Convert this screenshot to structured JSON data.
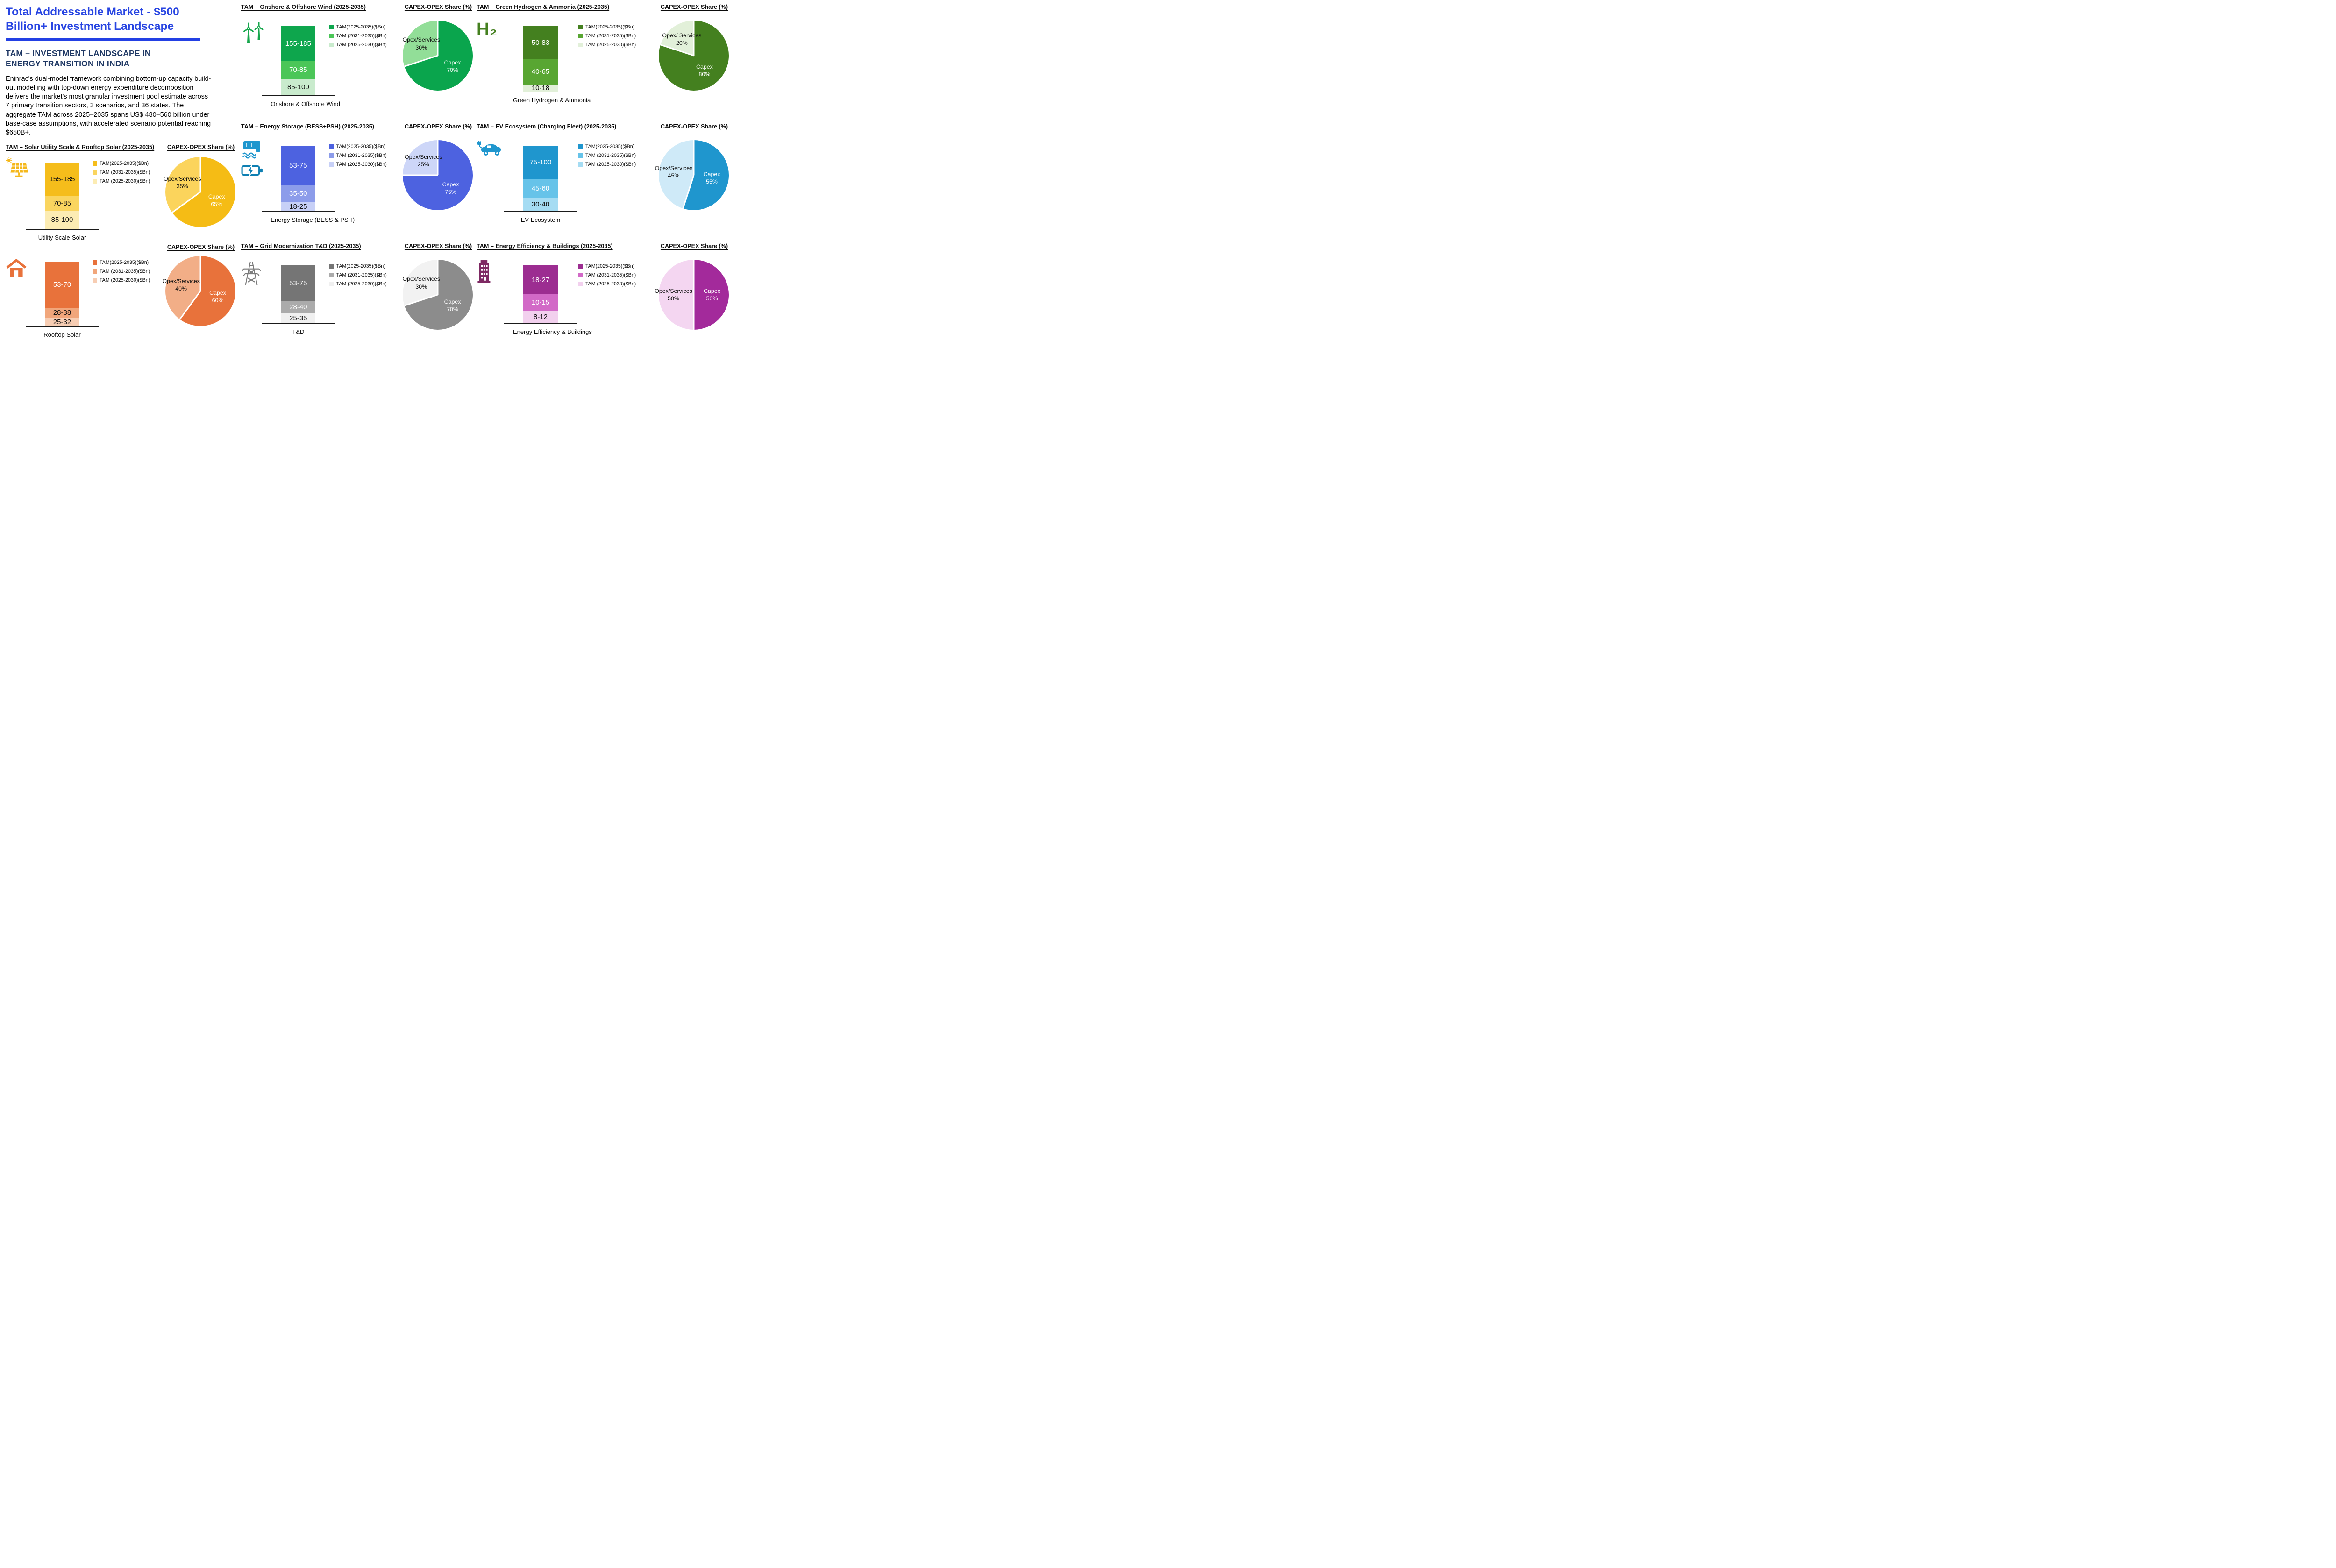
{
  "page": {
    "title": "Total Addressable Market - $500 Billion+ Investment Landscape",
    "subtitle": "TAM – INVESTMENT LANDSCAPE IN ENERGY TRANSITION IN INDIA",
    "description": "Eninrac's dual-model framework combining bottom-up capacity build-out modelling with top-down energy expenditure decomposition delivers the market's most granular investment pool estimate across 7 primary transition sectors, 3 scenarios, and 36 states. The aggregate TAM across 2025–2035 spans US$ 480–560 billion under base-case assumptions, with accelerated scenario potential reaching $650B+.",
    "accent_color": "#2845E2",
    "navy_color": "#1F3864"
  },
  "pie_heading": "CAPEX-OPEX Share (%)",
  "icons": {
    "h2_symbol": "H₂"
  },
  "chart_data": [
    {
      "id": "utility-solar",
      "type": "stacked-bar+pie",
      "unit": "$Bn",
      "title": "TAM – Solar Utility Scale & Rooftop Solar (2025-2035)",
      "category": "Utility Scale-Solar",
      "bar": {
        "segments": [
          {
            "name": "TAM(2025-2035)($Bn)",
            "range": "155-185",
            "color": "#F5BD1B",
            "text_color": "#111111",
            "h_pct": 50
          },
          {
            "name": "TAM (2031-2035)($Bn)",
            "range": "70-85",
            "color": "#FAD55F",
            "text_color": "#111111",
            "h_pct": 23
          },
          {
            "name": "TAM (2025-2030)($Bn)",
            "range": "85-100",
            "color": "#FCECB3",
            "text_color": "#111111",
            "h_pct": 27
          }
        ]
      },
      "pie": {
        "capex_label": "Capex",
        "capex_pct": 65,
        "capex_color": "#F5BC15",
        "capex_text": "#ffffff",
        "opex_label": "Opex/Services",
        "opex_pct": 35,
        "opex_color": "#FBD45C",
        "opex_text": "#111111"
      }
    },
    {
      "id": "rooftop-solar",
      "type": "stacked-bar+pie",
      "unit": "$Bn",
      "title": "",
      "category": "Rooftop Solar",
      "bar": {
        "segments": [
          {
            "name": "TAM(2025-2035)($Bn)",
            "range": "53-70",
            "color": "#E8723B",
            "text_color": "#ffffff",
            "h_pct": 72
          },
          {
            "name": "TAM (2031-2035)($Bn)",
            "range": "28-38",
            "color": "#F1A67B",
            "text_color": "#111111",
            "h_pct": 15
          },
          {
            "name": "TAM (2025-2030)($Bn)",
            "range": "25-32",
            "color": "#F7CDB3",
            "text_color": "#111111",
            "h_pct": 13
          }
        ]
      },
      "pie": {
        "capex_label": "Capex",
        "capex_pct": 60,
        "capex_color": "#E8723B",
        "capex_text": "#ffffff",
        "opex_label": "Opex/Services",
        "opex_pct": 40,
        "opex_color": "#F2AE87",
        "opex_text": "#111111"
      }
    },
    {
      "id": "wind",
      "type": "stacked-bar+pie",
      "unit": "$Bn",
      "title": "TAM – Onshore & Offshore Wind (2025-2035)",
      "category": "Onshore & Offshore Wind",
      "bar": {
        "segments": [
          {
            "name": "TAM(2025-2035)($Bn)",
            "range": "155-185",
            "color": "#0EA64D",
            "text_color": "#ffffff",
            "h_pct": 50
          },
          {
            "name": "TAM (2031-2035)($Bn)",
            "range": "70-85",
            "color": "#4BC658",
            "text_color": "#ffffff",
            "h_pct": 27
          },
          {
            "name": "TAM (2025-2030)($Bn)",
            "range": "85-100",
            "color": "#C9EBCD",
            "text_color": "#111111",
            "h_pct": 23
          }
        ]
      },
      "pie": {
        "capex_label": "Capex",
        "capex_pct": 70,
        "capex_color": "#0AA54D",
        "capex_text": "#ffffff",
        "opex_label": "Opex/Services",
        "opex_pct": 30,
        "opex_color": "#92DE98",
        "opex_text": "#111111"
      }
    },
    {
      "id": "green-hydrogen",
      "type": "stacked-bar+pie",
      "unit": "$Bn",
      "title": "TAM – Green Hydrogen & Ammonia (2025-2035)",
      "category": "Green Hydrogen & Ammonia",
      "bar": {
        "segments": [
          {
            "name": "TAM(2025-2035)($Bn)",
            "range": "50-83",
            "color": "#44801F",
            "text_color": "#ffffff",
            "h_pct": 50
          },
          {
            "name": "TAM (2031-2035)($Bn)",
            "range": "40-65",
            "color": "#58A632",
            "text_color": "#ffffff",
            "h_pct": 39
          },
          {
            "name": "TAM (2025-2030)($Bn)",
            "range": "10-18",
            "color": "#E2F0D9",
            "text_color": "#111111",
            "h_pct": 11
          }
        ]
      },
      "pie": {
        "capex_label": "Capex",
        "capex_pct": 80,
        "capex_color": "#44801F",
        "capex_text": "#ffffff",
        "opex_label": "Opex/ Services",
        "opex_pct": 20,
        "opex_color": "#E2F0D9",
        "opex_text": "#111111"
      }
    },
    {
      "id": "energy-storage",
      "type": "stacked-bar+pie",
      "unit": "$Bn",
      "title": "TAM – Energy Storage (BESS+PSH) (2025-2035)",
      "category": "Energy Storage (BESS & PSH)",
      "bar": {
        "segments": [
          {
            "name": "TAM(2025-2035)($Bn)",
            "range": "53-75",
            "color": "#4D62E0",
            "text_color": "#ffffff",
            "h_pct": 60
          },
          {
            "name": "TAM (2031-2035)($Bn)",
            "range": "35-50",
            "color": "#8C9CEA",
            "text_color": "#ffffff",
            "h_pct": 26
          },
          {
            "name": "TAM (2025-2030)($Bn)",
            "range": "18-25",
            "color": "#C7D0F7",
            "text_color": "#111111",
            "h_pct": 14
          }
        ]
      },
      "pie": {
        "capex_label": "Capex",
        "capex_pct": 75,
        "capex_color": "#4D62E0",
        "capex_text": "#ffffff",
        "opex_label": "Opex/Services",
        "opex_pct": 25,
        "opex_color": "#CDD6F8",
        "opex_text": "#111111"
      }
    },
    {
      "id": "ev-ecosystem",
      "type": "stacked-bar+pie",
      "unit": "$Bn",
      "title": "TAM – EV Ecosystem (Charging Fleet) (2025-2035)",
      "category": "EV Ecosystem",
      "bar": {
        "segments": [
          {
            "name": "TAM(2025-2035)($Bn)",
            "range": "75-100",
            "color": "#1F96CE",
            "text_color": "#ffffff",
            "h_pct": 51
          },
          {
            "name": "TAM (2031-2035)($Bn)",
            "range": "45-60",
            "color": "#66C3E9",
            "text_color": "#ffffff",
            "h_pct": 29
          },
          {
            "name": "TAM (2025-2030)($Bn)",
            "range": "30-40",
            "color": "#A5DCF3",
            "text_color": "#111111",
            "h_pct": 20
          }
        ]
      },
      "pie": {
        "capex_label": "Capex",
        "capex_pct": 55,
        "capex_color": "#1F96CE",
        "capex_text": "#ffffff",
        "opex_label": "Opex/Services",
        "opex_pct": 45,
        "opex_color": "#CFEAF8",
        "opex_text": "#111111"
      }
    },
    {
      "id": "grid-modernization",
      "type": "stacked-bar+pie",
      "unit": "$Bn",
      "title": "TAM – Grid Modernization T&D (2025-2035)",
      "category": "T&D",
      "bar": {
        "segments": [
          {
            "name": "TAM(2025-2035)($Bn)",
            "range": "53-75",
            "color": "#757575",
            "text_color": "#ffffff",
            "h_pct": 62
          },
          {
            "name": "TAM (2031-2035)($Bn)",
            "range": "28-40",
            "color": "#ABABAB",
            "text_color": "#ffffff",
            "h_pct": 21
          },
          {
            "name": "TAM (2025-2030)($Bn)",
            "range": "25-35",
            "color": "#F0F0F0",
            "text_color": "#111111",
            "h_pct": 17
          }
        ]
      },
      "pie": {
        "capex_label": "Capex",
        "capex_pct": 70,
        "capex_color": "#8C8C8C",
        "capex_text": "#ffffff",
        "opex_label": "Opex/Services",
        "opex_pct": 30,
        "opex_color": "#F2F2F2",
        "opex_text": "#111111"
      }
    },
    {
      "id": "energy-efficiency",
      "type": "stacked-bar+pie",
      "unit": "$Bn",
      "title": "TAM – Energy Efficiency & Buildings (2025-2035)",
      "category": "Energy Efficiency & Buildings",
      "bar": {
        "segments": [
          {
            "name": "TAM(2025-2035)($Bn)",
            "range": "18-27",
            "color": "#9C2D91",
            "text_color": "#ffffff",
            "h_pct": 50
          },
          {
            "name": "TAM (2031-2035)($Bn)",
            "range": "10-15",
            "color": "#D269C7",
            "text_color": "#ffffff",
            "h_pct": 28
          },
          {
            "name": "TAM (2025-2030)($Bn)",
            "range": "8-12",
            "color": "#F2D0EE",
            "text_color": "#111111",
            "h_pct": 22
          }
        ]
      },
      "pie": {
        "capex_label": "Capex",
        "capex_pct": 50,
        "capex_color": "#A32A9B",
        "capex_text": "#ffffff",
        "opex_label": "Opex/Services",
        "opex_pct": 50,
        "opex_color": "#F4D6F1",
        "opex_text": "#111111"
      }
    }
  ]
}
